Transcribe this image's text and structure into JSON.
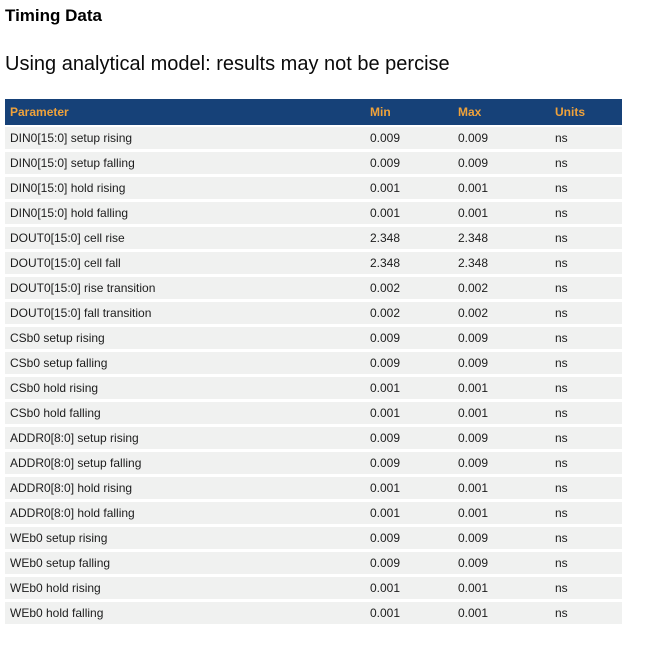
{
  "page": {
    "title": "Timing Data",
    "subtitle": "Using analytical model: results may not be percise"
  },
  "colors": {
    "header_bg": "#164178",
    "header_text": "#efa23b",
    "row_bg": "#f0f1f0",
    "body_text": "#1c1c1c"
  },
  "table": {
    "columns": [
      "Parameter",
      "Min",
      "Max",
      "Units"
    ],
    "rows": [
      {
        "parameter": "DIN0[15:0] setup rising",
        "min": "0.009",
        "max": "0.009",
        "units": "ns"
      },
      {
        "parameter": "DIN0[15:0] setup falling",
        "min": "0.009",
        "max": "0.009",
        "units": "ns"
      },
      {
        "parameter": "DIN0[15:0] hold rising",
        "min": "0.001",
        "max": "0.001",
        "units": "ns"
      },
      {
        "parameter": "DIN0[15:0] hold falling",
        "min": "0.001",
        "max": "0.001",
        "units": "ns"
      },
      {
        "parameter": "DOUT0[15:0] cell rise",
        "min": "2.348",
        "max": "2.348",
        "units": "ns"
      },
      {
        "parameter": "DOUT0[15:0] cell fall",
        "min": "2.348",
        "max": "2.348",
        "units": "ns"
      },
      {
        "parameter": "DOUT0[15:0] rise transition",
        "min": "0.002",
        "max": "0.002",
        "units": "ns"
      },
      {
        "parameter": "DOUT0[15:0] fall transition",
        "min": "0.002",
        "max": "0.002",
        "units": "ns"
      },
      {
        "parameter": "CSb0 setup rising",
        "min": "0.009",
        "max": "0.009",
        "units": "ns"
      },
      {
        "parameter": "CSb0 setup falling",
        "min": "0.009",
        "max": "0.009",
        "units": "ns"
      },
      {
        "parameter": "CSb0 hold rising",
        "min": "0.001",
        "max": "0.001",
        "units": "ns"
      },
      {
        "parameter": "CSb0 hold falling",
        "min": "0.001",
        "max": "0.001",
        "units": "ns"
      },
      {
        "parameter": "ADDR0[8:0] setup rising",
        "min": "0.009",
        "max": "0.009",
        "units": "ns"
      },
      {
        "parameter": "ADDR0[8:0] setup falling",
        "min": "0.009",
        "max": "0.009",
        "units": "ns"
      },
      {
        "parameter": "ADDR0[8:0] hold rising",
        "min": "0.001",
        "max": "0.001",
        "units": "ns"
      },
      {
        "parameter": "ADDR0[8:0] hold falling",
        "min": "0.001",
        "max": "0.001",
        "units": "ns"
      },
      {
        "parameter": "WEb0 setup rising",
        "min": "0.009",
        "max": "0.009",
        "units": "ns"
      },
      {
        "parameter": "WEb0 setup falling",
        "min": "0.009",
        "max": "0.009",
        "units": "ns"
      },
      {
        "parameter": "WEb0 hold rising",
        "min": "0.001",
        "max": "0.001",
        "units": "ns"
      },
      {
        "parameter": "WEb0 hold falling",
        "min": "0.001",
        "max": "0.001",
        "units": "ns"
      }
    ]
  }
}
